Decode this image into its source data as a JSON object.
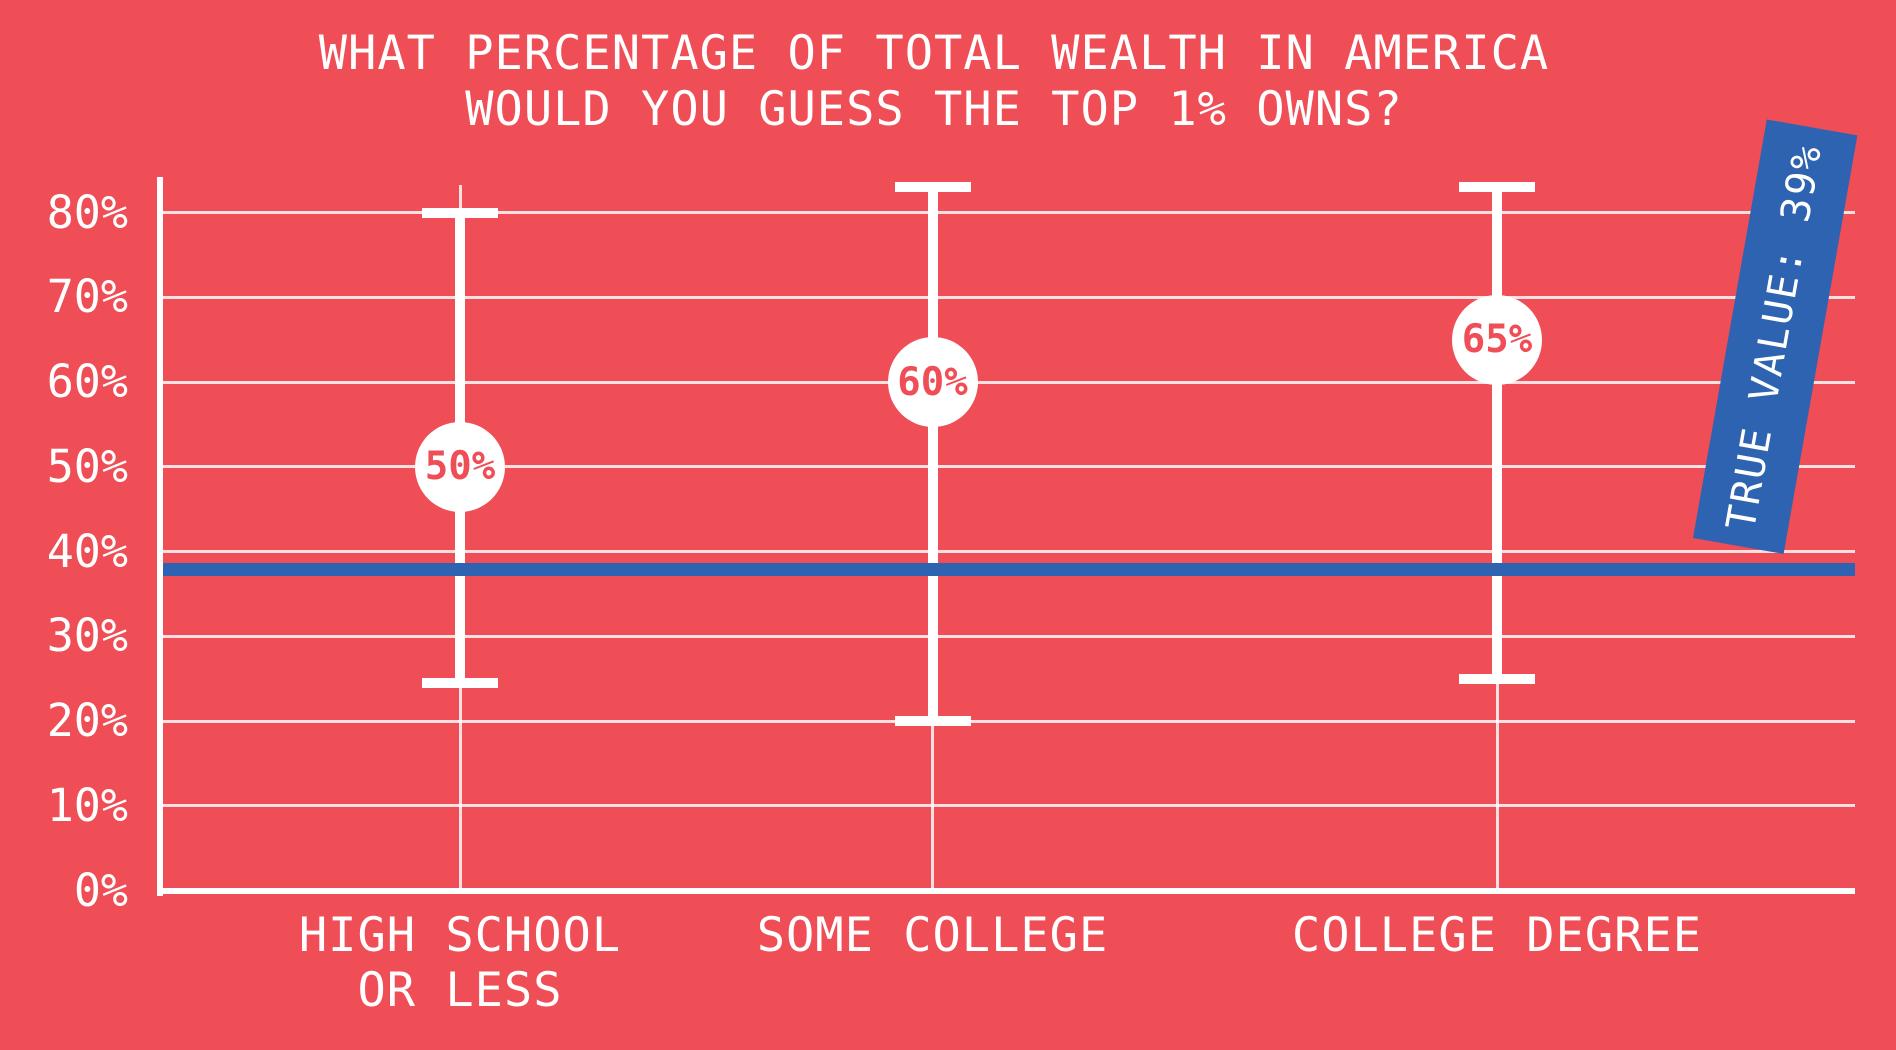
{
  "title_lines": [
    "WHAT PERCENTAGE OF TOTAL WEALTH IN AMERICA",
    "WOULD YOU GUESS THE TOP 1% OWNS?"
  ],
  "colors": {
    "background": "#EF4E56",
    "line_blue": "#2D63B1",
    "text_white": "#FFFFFF"
  },
  "chart_data": {
    "type": "error_bar",
    "title": "WHAT PERCENTAGE OF TOTAL WEALTH IN AMERICA WOULD YOU GUESS THE TOP 1% OWNS?",
    "categories": [
      "HIGH SCHOOL\nOR LESS",
      "SOME COLLEGE",
      "COLLEGE DEGREE"
    ],
    "series": [
      {
        "category": "HIGH SCHOOL OR LESS",
        "low": 24.5,
        "median": 50,
        "high": 80
      },
      {
        "category": "SOME COLLEGE",
        "low": 20,
        "median": 60,
        "high": 83
      },
      {
        "category": "COLLEGE DEGREE",
        "low": 25,
        "median": 65,
        "high": 83
      }
    ],
    "median_labels": [
      "50%",
      "60%",
      "65%"
    ],
    "y_axis": {
      "tick_labels": [
        "0%",
        "10%",
        "20%",
        "30%",
        "40%",
        "50%",
        "60%",
        "70%",
        "80%"
      ],
      "tick_values": [
        0,
        10,
        20,
        30,
        40,
        50,
        60,
        70,
        80
      ],
      "min": 0,
      "max": 84
    },
    "true_value": 39,
    "true_value_label": "TRUE VALUE: 39%",
    "grid": true,
    "legend": false
  }
}
